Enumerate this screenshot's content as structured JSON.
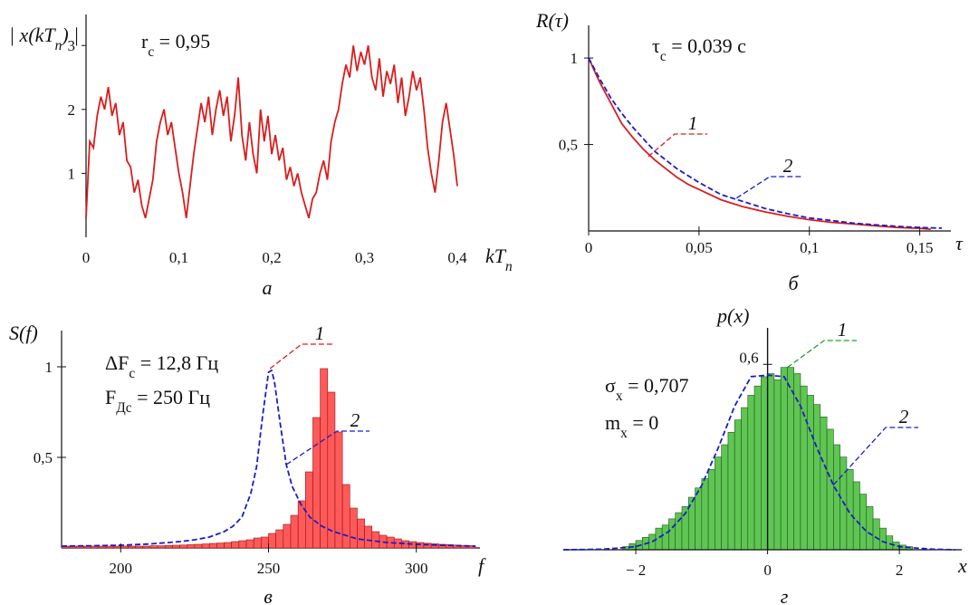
{
  "chart_data": [
    {
      "id": "a",
      "type": "line",
      "caption": "а",
      "ylabel": "|x(kT_п)|",
      "xlabel": "kT_п",
      "annotation": "r_c = 0,95",
      "xlim": [
        0,
        0.4
      ],
      "ylim": [
        0,
        3.4
      ],
      "xticks": [
        "0",
        "0,1",
        "0,2",
        "0,3",
        "0,4"
      ],
      "yticks": [
        "1",
        "2",
        "3"
      ],
      "color": "#d81e1e",
      "x": [
        0,
        0.004,
        0.008,
        0.012,
        0.016,
        0.02,
        0.024,
        0.028,
        0.032,
        0.036,
        0.04,
        0.044,
        0.048,
        0.052,
        0.056,
        0.06,
        0.064,
        0.068,
        0.072,
        0.076,
        0.08,
        0.084,
        0.088,
        0.092,
        0.096,
        0.1,
        0.104,
        0.108,
        0.112,
        0.116,
        0.12,
        0.124,
        0.128,
        0.132,
        0.136,
        0.14,
        0.144,
        0.148,
        0.152,
        0.156,
        0.16,
        0.164,
        0.168,
        0.172,
        0.176,
        0.18,
        0.184,
        0.188,
        0.192,
        0.196,
        0.2,
        0.204,
        0.208,
        0.212,
        0.216,
        0.22,
        0.224,
        0.228,
        0.232,
        0.236,
        0.24,
        0.244,
        0.248,
        0.252,
        0.256,
        0.26,
        0.264,
        0.268,
        0.272,
        0.276,
        0.28,
        0.284,
        0.288,
        0.292,
        0.296,
        0.3,
        0.304,
        0.308,
        0.312,
        0.316,
        0.32,
        0.324,
        0.328,
        0.332,
        0.336,
        0.34,
        0.344,
        0.348,
        0.352,
        0.356,
        0.36,
        0.364,
        0.368,
        0.372,
        0.376,
        0.38,
        0.384,
        0.388,
        0.392,
        0.396,
        0.4
      ],
      "y": [
        0.3,
        1.5,
        1.4,
        1.9,
        2.2,
        2.0,
        2.35,
        1.9,
        2.1,
        1.6,
        1.8,
        1.2,
        1.1,
        0.7,
        0.9,
        0.5,
        0.3,
        0.6,
        0.9,
        1.5,
        1.8,
        2.0,
        1.6,
        1.8,
        1.4,
        1.0,
        0.7,
        0.3,
        0.8,
        1.3,
        1.7,
        2.1,
        1.8,
        2.2,
        1.6,
        2.0,
        2.3,
        1.9,
        2.2,
        1.5,
        1.9,
        2.5,
        1.6,
        1.2,
        1.8,
        1.3,
        1.0,
        2.0,
        1.5,
        1.9,
        1.3,
        1.6,
        1.2,
        1.4,
        0.9,
        1.1,
        0.8,
        1.0,
        0.7,
        0.5,
        0.3,
        0.6,
        0.7,
        1.0,
        1.2,
        0.9,
        1.5,
        1.8,
        2.0,
        2.4,
        2.7,
        2.5,
        3.0,
        2.6,
        2.9,
        2.7,
        3.0,
        2.5,
        2.3,
        2.8,
        2.2,
        2.6,
        2.4,
        2.7,
        2.1,
        2.5,
        1.9,
        2.2,
        2.6,
        2.3,
        2.5,
        2.0,
        1.4,
        1.0,
        0.7,
        1.2,
        1.8,
        2.1,
        1.7,
        1.3,
        0.8
      ]
    },
    {
      "id": "b",
      "type": "line",
      "caption": "б",
      "ylabel": "R(τ)",
      "xlabel": "τ",
      "annotation": "τ_c = 0,039 c",
      "xlim": [
        0,
        0.16
      ],
      "ylim": [
        0,
        1.1
      ],
      "xticks": [
        "0",
        "0,05",
        "0,1",
        "0,15"
      ],
      "yticks": [
        "0,5",
        "1"
      ],
      "series": [
        {
          "name": "1",
          "color": "#d81e1e",
          "dash": "solid",
          "x": [
            0,
            0.005,
            0.01,
            0.015,
            0.02,
            0.025,
            0.03,
            0.035,
            0.04,
            0.045,
            0.05,
            0.06,
            0.07,
            0.08,
            0.09,
            0.1,
            0.11,
            0.12,
            0.13,
            0.14,
            0.15,
            0.155
          ],
          "y": [
            1,
            0.86,
            0.74,
            0.62,
            0.54,
            0.47,
            0.41,
            0.36,
            0.31,
            0.27,
            0.24,
            0.18,
            0.14,
            0.11,
            0.085,
            0.065,
            0.05,
            0.04,
            0.03,
            0.02,
            0.015,
            0.01
          ]
        },
        {
          "name": "2",
          "color": "#1c1cc8",
          "dash": "dashed",
          "x": [
            0,
            0.005,
            0.01,
            0.015,
            0.02,
            0.025,
            0.03,
            0.035,
            0.04,
            0.045,
            0.05,
            0.06,
            0.07,
            0.08,
            0.09,
            0.1,
            0.11,
            0.12,
            0.13,
            0.14,
            0.15,
            0.16
          ],
          "y": [
            1,
            0.88,
            0.77,
            0.68,
            0.6,
            0.53,
            0.46,
            0.41,
            0.36,
            0.32,
            0.28,
            0.21,
            0.17,
            0.13,
            0.1,
            0.075,
            0.06,
            0.045,
            0.035,
            0.026,
            0.02,
            0.016
          ]
        }
      ]
    },
    {
      "id": "c",
      "type": "bar",
      "caption": "в",
      "ylabel": "S(f)",
      "xlabel": "f",
      "annotations": [
        "ΔF_c = 12,8 Гц",
        "F_Дc = 250 Гц"
      ],
      "xlim": [
        180,
        320
      ],
      "ylim": [
        0,
        1.1
      ],
      "xticks": [
        "200",
        "250",
        "300"
      ],
      "yticks": [
        "0,5",
        "1"
      ],
      "bar_color": "#ff5a5a",
      "bar_edge": "#9a1010",
      "bin_width": 2.5,
      "bins_start": 180,
      "values": [
        0.01,
        0.01,
        0.01,
        0.01,
        0.01,
        0.01,
        0.01,
        0.01,
        0.01,
        0.01,
        0.01,
        0.01,
        0.012,
        0.012,
        0.014,
        0.015,
        0.016,
        0.018,
        0.02,
        0.022,
        0.025,
        0.027,
        0.03,
        0.035,
        0.04,
        0.045,
        0.055,
        0.06,
        0.08,
        0.1,
        0.13,
        0.18,
        0.26,
        0.42,
        0.72,
        0.99,
        0.86,
        0.64,
        0.35,
        0.22,
        0.16,
        0.12,
        0.09,
        0.07,
        0.06,
        0.05,
        0.04,
        0.035,
        0.03,
        0.026,
        0.023,
        0.02,
        0.018,
        0.016,
        0.014,
        0.013
      ],
      "fit": {
        "name": "2",
        "color": "#1c1cc8",
        "x": [
          180,
          190,
          200,
          210,
          220,
          225,
          230,
          235,
          238,
          241,
          244,
          246,
          248,
          250,
          251,
          252,
          254,
          256,
          258,
          261,
          264,
          268,
          272,
          276,
          280,
          290,
          300,
          310,
          320
        ],
        "y": [
          0.01,
          0.012,
          0.015,
          0.022,
          0.035,
          0.045,
          0.06,
          0.09,
          0.12,
          0.17,
          0.3,
          0.45,
          0.73,
          0.97,
          0.98,
          0.92,
          0.68,
          0.46,
          0.34,
          0.24,
          0.17,
          0.12,
          0.09,
          0.07,
          0.05,
          0.03,
          0.02,
          0.014,
          0.01
        ]
      },
      "label_1": "1"
    },
    {
      "id": "d",
      "type": "bar",
      "caption": "г",
      "ylabel": "p(x)",
      "xlabel": "x",
      "annotations": [
        "σ_x = 0,707",
        "m_x = 0"
      ],
      "xlim": [
        -3.1,
        2.85
      ],
      "ylim": [
        0,
        0.68
      ],
      "xticks": [
        "− 2",
        "0",
        "2"
      ],
      "yticks": [
        "0,6"
      ],
      "bar_color": "#5fc553",
      "bar_edge": "#205a1a",
      "bin_width": 0.1,
      "bins_start": -2.2,
      "values": [
        0.01,
        0.02,
        0.03,
        0.04,
        0.05,
        0.07,
        0.08,
        0.1,
        0.12,
        0.14,
        0.17,
        0.2,
        0.23,
        0.26,
        0.3,
        0.34,
        0.38,
        0.42,
        0.46,
        0.5,
        0.53,
        0.56,
        0.57,
        0.55,
        0.59,
        0.59,
        0.57,
        0.53,
        0.5,
        0.47,
        0.43,
        0.39,
        0.34,
        0.3,
        0.26,
        0.22,
        0.18,
        0.14,
        0.1,
        0.07,
        0.045,
        0.025,
        0.015,
        0.01
      ],
      "fit": {
        "name": "2",
        "color": "#1c1cc8",
        "x": [
          -3.1,
          -2.75,
          -2.5,
          -2.25,
          -2,
          -1.75,
          -1.5,
          -1.25,
          -1,
          -0.75,
          -0.5,
          -0.25,
          0,
          0.25,
          0.5,
          0.75,
          1,
          1.25,
          1.5,
          1.75,
          2,
          2.25,
          2.5,
          2.85
        ],
        "y": [
          0.0,
          0.001,
          0.002,
          0.0055,
          0.0103,
          0.0262,
          0.059,
          0.117,
          0.208,
          0.329,
          0.465,
          0.56,
          0.565,
          0.56,
          0.465,
          0.329,
          0.208,
          0.117,
          0.059,
          0.0262,
          0.0103,
          0.0055,
          0.002,
          0.0
        ]
      },
      "label_1": "1"
    }
  ]
}
